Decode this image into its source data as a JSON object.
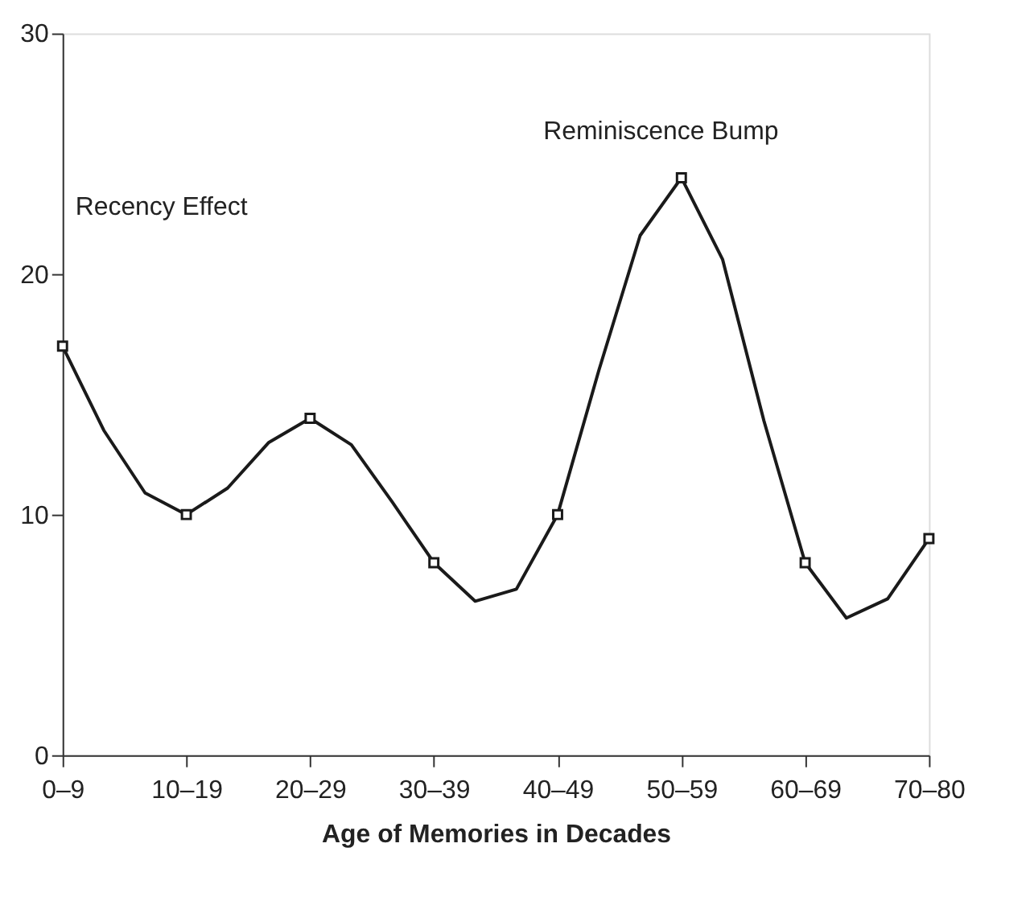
{
  "chart_data": {
    "type": "line",
    "xlabel": "Age of Memories in Decades",
    "categories": [
      "0–9",
      null,
      null,
      "10–19",
      null,
      null,
      "20–29",
      null,
      null,
      "30–39",
      null,
      null,
      "40–49",
      null,
      null,
      "50–59",
      null,
      null,
      "60–69",
      null,
      null,
      "70–80"
    ],
    "ylim": [
      0,
      30
    ],
    "yticks": [
      0,
      10,
      20,
      30
    ],
    "grid": false,
    "line_style": "solid",
    "series": [
      {
        "color": "#1a1a1a",
        "values": [
          17,
          13.5,
          10.9,
          10,
          11.1,
          13,
          14,
          12.9,
          10.5,
          8,
          6.4,
          6.9,
          10,
          16,
          21.6,
          24,
          20.6,
          13.9,
          8,
          5.7,
          6.5,
          9
        ]
      },
      {
        "type": "scatter",
        "color": "#1a1a1a",
        "marker": "square",
        "values": [
          17,
          null,
          null,
          10,
          null,
          null,
          14,
          null,
          null,
          8,
          null,
          null,
          10,
          null,
          null,
          24,
          null,
          null,
          8,
          null,
          null,
          9
        ]
      }
    ],
    "annotations": [
      "Recency Effect",
      "Reminiscence Bump"
    ]
  }
}
